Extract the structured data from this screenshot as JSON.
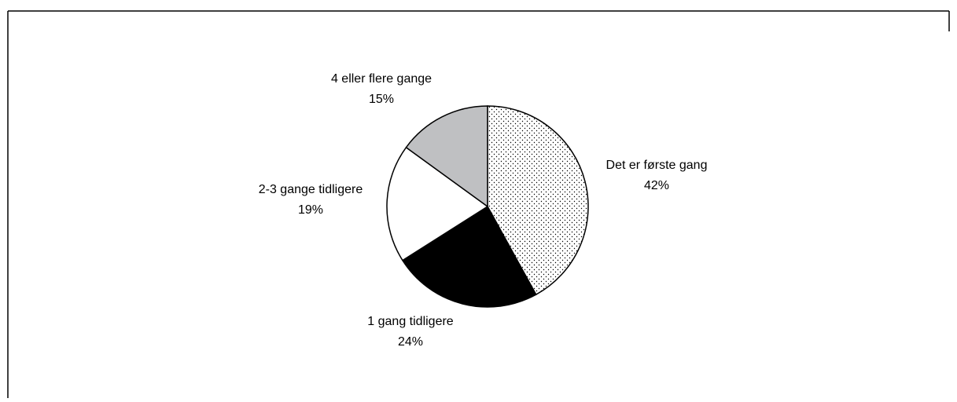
{
  "chart_data": {
    "type": "pie",
    "categories": [
      "Det er første gang",
      "1 gang tidligere",
      "2-3 gange tidligere",
      "4 eller flere gange"
    ],
    "values": [
      42,
      24,
      19,
      15
    ],
    "value_labels": [
      "42%",
      "24%",
      "19%",
      "15%"
    ],
    "colors": [
      "dots",
      "#000000",
      "#ffffff",
      "#bfc0c2"
    ]
  }
}
